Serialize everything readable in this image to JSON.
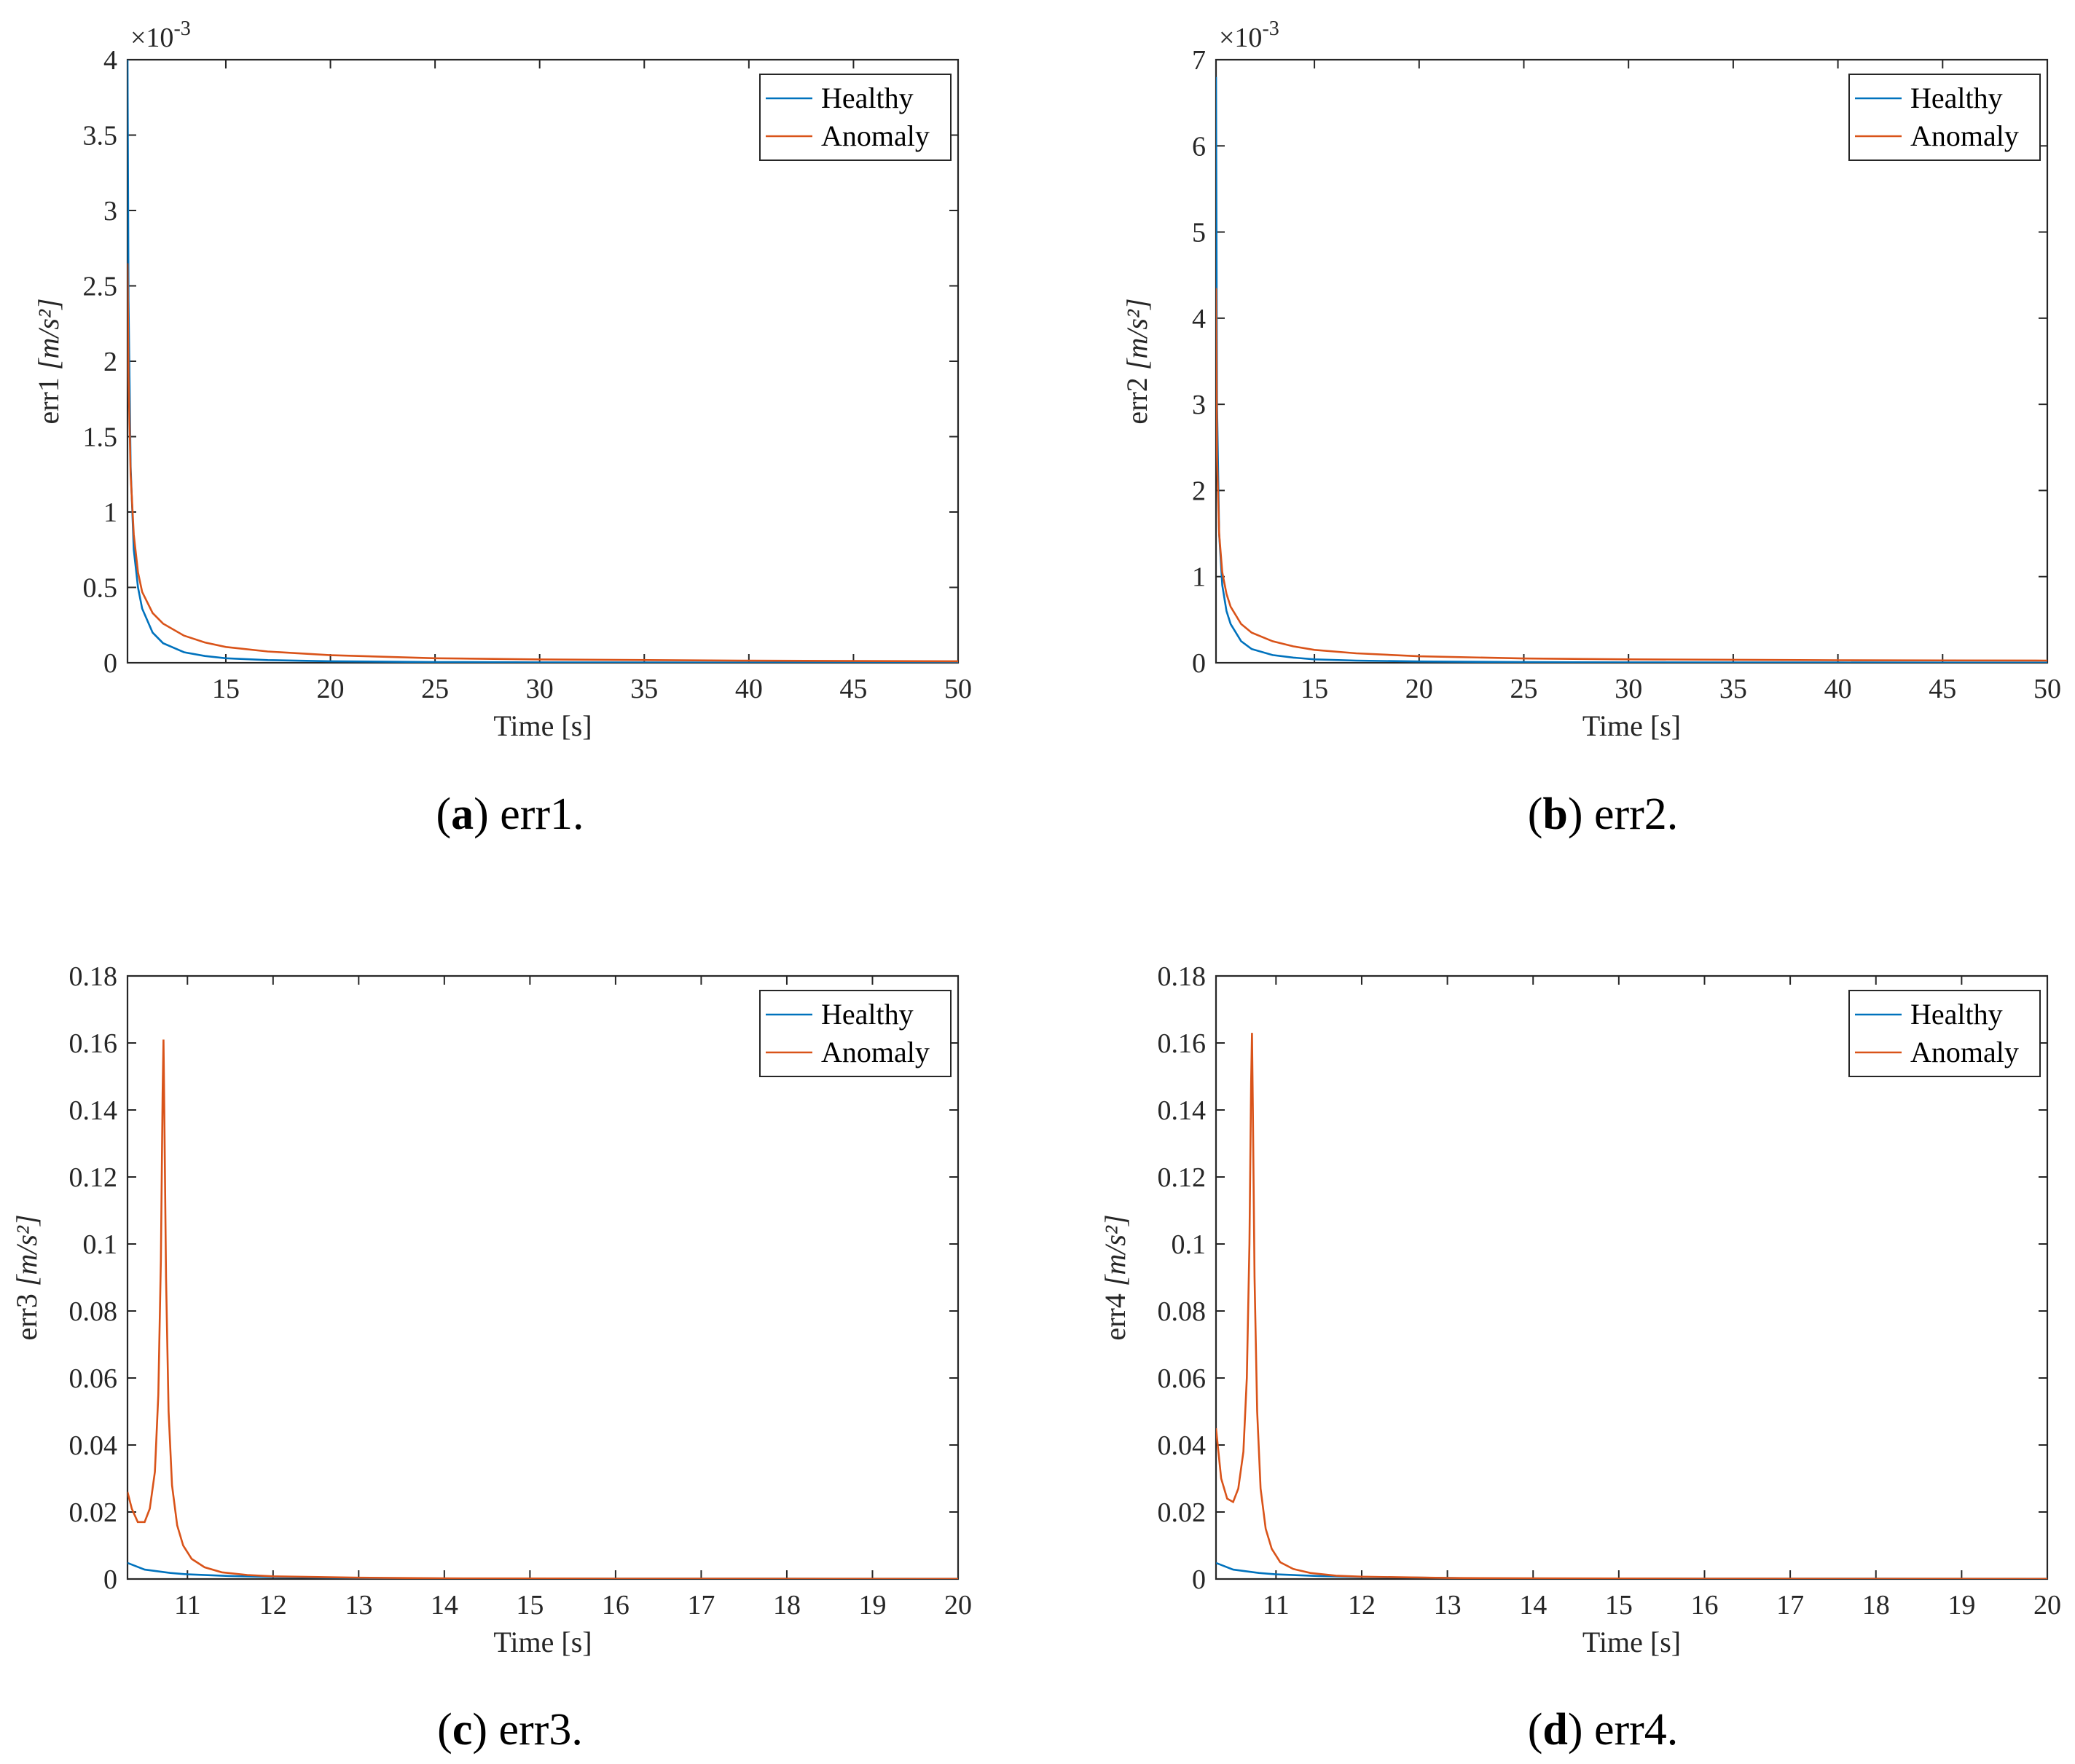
{
  "colors": {
    "healthy": "#0072BD",
    "anomaly": "#D95319",
    "axis": "#262626"
  },
  "chart_data": [
    {
      "type": "line",
      "panel": "a",
      "caption_letter": "a",
      "caption_text": " err1.",
      "ylabel_prefix": "err1 ",
      "ylabel_unit": "[m/s²]",
      "xlabel": "Time [s]",
      "multiplier_base": "×10",
      "multiplier_exp": "-3",
      "xlim": [
        10.3,
        50
      ],
      "ylim": [
        0,
        4
      ],
      "xticks": [
        15,
        20,
        25,
        30,
        35,
        40,
        45,
        50
      ],
      "yticks": [
        0,
        0.5,
        1,
        1.5,
        2,
        2.5,
        3,
        3.5,
        4
      ],
      "ytick_labels": [
        "0",
        "0.5",
        "1",
        "1.5",
        "2",
        "2.5",
        "3",
        "3.5",
        "4"
      ],
      "legend": [
        "Healthy",
        "Anomaly"
      ],
      "legend_position": "top-right",
      "series": [
        {
          "name": "Healthy",
          "x": [
            10.3,
            10.35,
            10.45,
            10.6,
            10.8,
            11.0,
            11.5,
            12,
            13,
            14,
            15,
            17,
            20,
            25,
            30,
            40,
            50
          ],
          "y": [
            4.0,
            2.4,
            1.3,
            0.75,
            0.5,
            0.36,
            0.2,
            0.13,
            0.07,
            0.045,
            0.03,
            0.018,
            0.01,
            0.005,
            0.003,
            0.0015,
            0.001
          ]
        },
        {
          "name": "Anomaly",
          "x": [
            10.3,
            10.35,
            10.45,
            10.6,
            10.8,
            11.0,
            11.5,
            12,
            13,
            14,
            15,
            17,
            20,
            25,
            30,
            40,
            50
          ],
          "y": [
            2.65,
            1.9,
            1.25,
            0.85,
            0.6,
            0.47,
            0.33,
            0.26,
            0.18,
            0.135,
            0.105,
            0.075,
            0.05,
            0.03,
            0.022,
            0.014,
            0.01
          ]
        }
      ]
    },
    {
      "type": "line",
      "panel": "b",
      "caption_letter": "b",
      "caption_text": " err2.",
      "ylabel_prefix": "err2 ",
      "ylabel_unit": "[m/s²]",
      "xlabel": "Time [s]",
      "multiplier_base": "×10",
      "multiplier_exp": "-3",
      "xlim": [
        10.3,
        50
      ],
      "ylim": [
        0,
        7
      ],
      "xticks": [
        15,
        20,
        25,
        30,
        35,
        40,
        45,
        50
      ],
      "yticks": [
        0,
        1,
        2,
        3,
        4,
        5,
        6,
        7
      ],
      "ytick_labels": [
        "0",
        "1",
        "2",
        "3",
        "4",
        "5",
        "6",
        "7"
      ],
      "legend": [
        "Healthy",
        "Anomaly"
      ],
      "legend_position": "top-right",
      "series": [
        {
          "name": "Healthy",
          "x": [
            10.3,
            10.35,
            10.45,
            10.6,
            10.8,
            11.0,
            11.5,
            12,
            13,
            14,
            15,
            17,
            20,
            25,
            30,
            40,
            50
          ],
          "y": [
            6.8,
            3.0,
            1.5,
            0.9,
            0.6,
            0.45,
            0.25,
            0.16,
            0.09,
            0.06,
            0.04,
            0.025,
            0.015,
            0.008,
            0.005,
            0.003,
            0.002
          ]
        },
        {
          "name": "Anomaly",
          "x": [
            10.3,
            10.35,
            10.45,
            10.6,
            10.8,
            11.0,
            11.5,
            12,
            13,
            14,
            15,
            17,
            20,
            25,
            30,
            40,
            50
          ],
          "y": [
            4.35,
            2.4,
            1.5,
            1.05,
            0.8,
            0.65,
            0.45,
            0.35,
            0.25,
            0.19,
            0.15,
            0.11,
            0.075,
            0.05,
            0.04,
            0.03,
            0.025
          ]
        }
      ]
    },
    {
      "type": "line",
      "panel": "c",
      "caption_letter": "c",
      "caption_text": " err3.",
      "ylabel_prefix": "err3 ",
      "ylabel_unit": "[m/s²]",
      "xlabel": "Time [s]",
      "multiplier_base": "",
      "multiplier_exp": "",
      "xlim": [
        10.3,
        20
      ],
      "ylim": [
        0,
        0.18
      ],
      "xticks": [
        11,
        12,
        13,
        14,
        15,
        16,
        17,
        18,
        19,
        20
      ],
      "yticks": [
        0,
        0.02,
        0.04,
        0.06,
        0.08,
        0.1,
        0.12,
        0.14,
        0.16,
        0.18
      ],
      "ytick_labels": [
        "0",
        "0.02",
        "0.04",
        "0.06",
        "0.08",
        "0.1",
        "0.12",
        "0.14",
        "0.16",
        "0.18"
      ],
      "legend": [
        "Healthy",
        "Anomaly"
      ],
      "legend_position": "top-right",
      "series": [
        {
          "name": "Healthy",
          "x": [
            10.3,
            10.5,
            10.8,
            11.0,
            11.5,
            12.0,
            13.0,
            14.0,
            16.0,
            18.0,
            20.0
          ],
          "y": [
            0.0048,
            0.0028,
            0.0018,
            0.0014,
            0.0009,
            0.0006,
            0.0003,
            0.00015,
            0.0001,
            8e-05,
            6e-05
          ]
        },
        {
          "name": "Anomaly",
          "x": [
            10.3,
            10.35,
            10.42,
            10.5,
            10.56,
            10.62,
            10.66,
            10.69,
            10.71,
            10.72,
            10.73,
            10.75,
            10.78,
            10.82,
            10.88,
            10.95,
            11.05,
            11.2,
            11.4,
            11.7,
            12.0,
            13.0,
            14.0,
            16.0,
            20.0
          ],
          "y": [
            0.026,
            0.021,
            0.017,
            0.017,
            0.021,
            0.032,
            0.055,
            0.095,
            0.145,
            0.161,
            0.14,
            0.09,
            0.05,
            0.028,
            0.016,
            0.01,
            0.006,
            0.0035,
            0.002,
            0.0012,
            0.0008,
            0.0004,
            0.0002,
            0.0001,
            5e-05
          ]
        }
      ]
    },
    {
      "type": "line",
      "panel": "d",
      "caption_letter": "d",
      "caption_text": " err4.",
      "ylabel_prefix": "err4 ",
      "ylabel_unit": "[m/s²]",
      "xlabel": "Time [s]",
      "multiplier_base": "",
      "multiplier_exp": "",
      "xlim": [
        10.3,
        20
      ],
      "ylim": [
        0,
        0.18
      ],
      "xticks": [
        11,
        12,
        13,
        14,
        15,
        16,
        17,
        18,
        19,
        20
      ],
      "yticks": [
        0,
        0.02,
        0.04,
        0.06,
        0.08,
        0.1,
        0.12,
        0.14,
        0.16,
        0.18
      ],
      "ytick_labels": [
        "0",
        "0.02",
        "0.04",
        "0.06",
        "0.08",
        "0.1",
        "0.12",
        "0.14",
        "0.16",
        "0.18"
      ],
      "legend": [
        "Healthy",
        "Anomaly"
      ],
      "legend_position": "top-right",
      "series": [
        {
          "name": "Healthy",
          "x": [
            10.3,
            10.5,
            10.8,
            11.0,
            11.5,
            12.0,
            13.0,
            13.5,
            16.0,
            18.0,
            20.0
          ],
          "y": [
            0.0048,
            0.0028,
            0.0018,
            0.0014,
            0.0009,
            0.0006,
            0.0003,
            0.00015,
            0.0001,
            8e-05,
            6e-05
          ]
        },
        {
          "name": "Anomaly",
          "x": [
            10.3,
            10.36,
            10.43,
            10.5,
            10.56,
            10.62,
            10.66,
            10.69,
            10.71,
            10.72,
            10.73,
            10.75,
            10.78,
            10.82,
            10.88,
            10.95,
            11.05,
            11.2,
            11.4,
            11.7,
            12.0,
            13.0,
            14.0,
            16.0,
            20.0
          ],
          "y": [
            0.045,
            0.03,
            0.024,
            0.023,
            0.027,
            0.038,
            0.06,
            0.1,
            0.148,
            0.163,
            0.14,
            0.09,
            0.05,
            0.027,
            0.015,
            0.009,
            0.005,
            0.003,
            0.0018,
            0.001,
            0.0007,
            0.0003,
            0.0002,
            0.0001,
            5e-05
          ]
        }
      ]
    }
  ]
}
